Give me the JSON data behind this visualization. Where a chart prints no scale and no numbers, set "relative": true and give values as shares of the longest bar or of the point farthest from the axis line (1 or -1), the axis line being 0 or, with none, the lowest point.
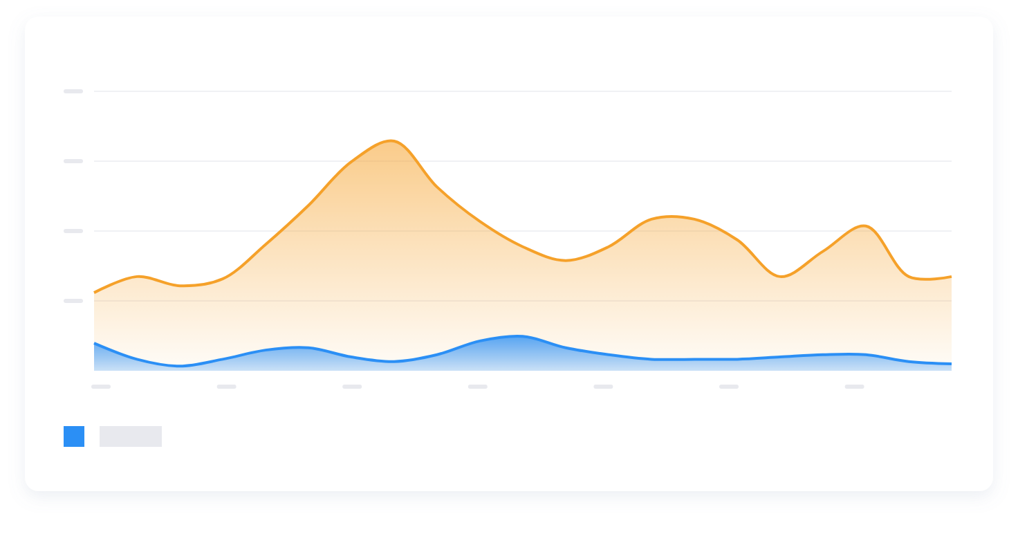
{
  "chart_data": {
    "type": "area",
    "relative": true,
    "grid": "y",
    "categories": [
      null,
      null,
      null,
      null,
      null,
      null,
      null,
      null,
      null,
      null,
      null,
      null,
      null,
      null,
      null,
      null,
      null,
      null,
      null,
      null,
      null
    ],
    "series": [
      {
        "color": "#f5a12a",
        "values": [
          0.34,
          0.41,
          0.37,
          0.4,
          0.55,
          0.72,
          0.91,
          1,
          0.8,
          0.65,
          0.54,
          0.48,
          0.54,
          0.66,
          0.66,
          0.57,
          0.41,
          0.52,
          0.63,
          0.41,
          0.41
        ]
      },
      {
        "color": "#2b8ff5",
        "values": [
          0.12,
          0.05,
          0.02,
          0.05,
          0.09,
          0.1,
          0.06,
          0.04,
          0.07,
          0.13,
          0.15,
          0.1,
          0.07,
          0.05,
          0.05,
          0.05,
          0.06,
          0.07,
          0.07,
          0.04,
          0.03
        ]
      }
    ]
  }
}
